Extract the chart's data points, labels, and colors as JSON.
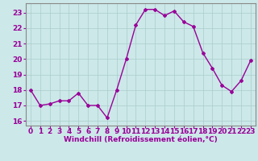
{
  "x": [
    0,
    1,
    2,
    3,
    4,
    5,
    6,
    7,
    8,
    9,
    10,
    11,
    12,
    13,
    14,
    15,
    16,
    17,
    18,
    19,
    20,
    21,
    22,
    23
  ],
  "y": [
    18.0,
    17.0,
    17.1,
    17.3,
    17.3,
    17.8,
    17.0,
    17.0,
    16.2,
    18.0,
    20.0,
    22.2,
    23.2,
    23.2,
    22.8,
    23.1,
    22.4,
    22.1,
    20.4,
    19.4,
    18.3,
    17.9,
    18.6,
    19.9
  ],
  "line_color": "#990099",
  "marker": "D",
  "marker_size": 2.0,
  "bg_color": "#cce8e8",
  "grid_color": "#aacccc",
  "xlabel": "Windchill (Refroidissement éolien,°C)",
  "tick_color": "#990099",
  "ylim": [
    15.7,
    23.6
  ],
  "xlim": [
    -0.5,
    23.5
  ],
  "yticks": [
    16,
    17,
    18,
    19,
    20,
    21,
    22,
    23
  ],
  "xticks": [
    0,
    1,
    2,
    3,
    4,
    5,
    6,
    7,
    8,
    9,
    10,
    11,
    12,
    13,
    14,
    15,
    16,
    17,
    18,
    19,
    20,
    21,
    22,
    23
  ],
  "xlabel_fontsize": 6.5,
  "tick_fontsize": 6.5,
  "linewidth": 1.0
}
